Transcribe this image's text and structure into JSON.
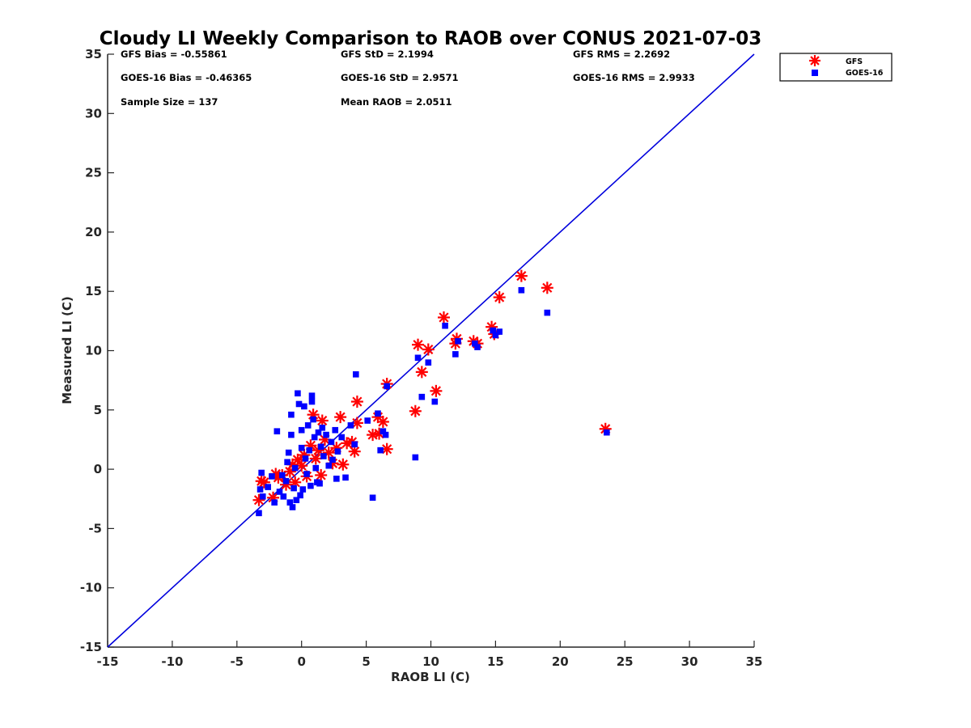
{
  "chart_data": {
    "type": "scatter",
    "title": "Cloudy LI Weekly Comparison to RAOB over CONUS 2021-07-03",
    "xlabel": "RAOB LI (C)",
    "ylabel": "Measured LI (C)",
    "xlim": [
      -15,
      35
    ],
    "ylim": [
      -15,
      35
    ],
    "xticks": [
      "-15",
      "-10",
      "-5",
      "0",
      "5",
      "10",
      "15",
      "20",
      "25",
      "30",
      "35"
    ],
    "yticks": [
      "-15",
      "-10",
      "-5",
      "0",
      "5",
      "10",
      "15",
      "20",
      "25",
      "30",
      "35"
    ],
    "grid": false,
    "legend_position": "outside top-right",
    "reference_line": {
      "name": "1:1 line",
      "points": [
        [
          -15,
          -15
        ],
        [
          35,
          35
        ]
      ],
      "color": "#0000dd"
    },
    "stats": [
      "GFS Bias = -0.55861",
      "GFS StD = 2.1994",
      "GFS RMS = 2.2692",
      "GOES-16 Bias = -0.46365",
      "GOES-16 StD = 2.9571",
      "GOES-16 RMS = 2.9933",
      "Sample Size = 137",
      "Mean RAOB = 2.0511"
    ],
    "series": [
      {
        "name": "GFS",
        "marker": "asterisk",
        "color": "#ff0000",
        "points": [
          [
            -3.3,
            -2.6
          ],
          [
            -3.1,
            -1.0
          ],
          [
            -2.9,
            -1.1
          ],
          [
            -2.2,
            -2.4
          ],
          [
            -2.0,
            -0.4
          ],
          [
            -1.8,
            -0.7
          ],
          [
            -1.5,
            -0.5
          ],
          [
            -1.2,
            -1.3
          ],
          [
            -0.9,
            -0.2
          ],
          [
            -0.7,
            0.4
          ],
          [
            -0.5,
            -1.1
          ],
          [
            -0.3,
            0.8
          ],
          [
            0.0,
            0.3
          ],
          [
            0.2,
            1.2
          ],
          [
            0.4,
            -0.6
          ],
          [
            0.7,
            2.0
          ],
          [
            0.9,
            4.6
          ],
          [
            1.1,
            0.9
          ],
          [
            1.3,
            1.6
          ],
          [
            1.5,
            -0.5
          ],
          [
            1.6,
            4.1
          ],
          [
            1.8,
            2.5
          ],
          [
            2.1,
            1.4
          ],
          [
            2.4,
            0.5
          ],
          [
            2.7,
            1.8
          ],
          [
            3.0,
            4.4
          ],
          [
            3.2,
            0.4
          ],
          [
            3.5,
            2.2
          ],
          [
            3.9,
            2.3
          ],
          [
            4.1,
            1.5
          ],
          [
            4.3,
            3.9
          ],
          [
            4.3,
            5.7
          ],
          [
            5.5,
            2.9
          ],
          [
            5.9,
            4.4
          ],
          [
            6.0,
            3.0
          ],
          [
            6.3,
            4.0
          ],
          [
            6.6,
            1.7
          ],
          [
            6.6,
            7.2
          ],
          [
            8.8,
            4.9
          ],
          [
            9.0,
            10.5
          ],
          [
            9.3,
            8.2
          ],
          [
            9.8,
            10.1
          ],
          [
            10.4,
            6.6
          ],
          [
            11.0,
            12.8
          ],
          [
            11.9,
            10.6
          ],
          [
            12.0,
            11.0
          ],
          [
            13.3,
            10.8
          ],
          [
            13.6,
            10.6
          ],
          [
            14.7,
            12.0
          ],
          [
            14.9,
            11.4
          ],
          [
            15.3,
            14.5
          ],
          [
            17.0,
            16.3
          ],
          [
            19.0,
            15.3
          ],
          [
            23.5,
            3.4
          ]
        ]
      },
      {
        "name": "GOES-16",
        "marker": "square",
        "color": "#0000ff",
        "points": [
          [
            -3.3,
            -3.7
          ],
          [
            -3.2,
            -1.7
          ],
          [
            -3.1,
            -0.3
          ],
          [
            -3.0,
            -2.3
          ],
          [
            -2.6,
            -1.5
          ],
          [
            -2.3,
            -0.6
          ],
          [
            -2.1,
            -2.8
          ],
          [
            -1.9,
            3.2
          ],
          [
            -1.7,
            -1.9
          ],
          [
            -1.5,
            -0.5
          ],
          [
            -1.4,
            -2.3
          ],
          [
            -1.2,
            -1.0
          ],
          [
            -1.1,
            0.6
          ],
          [
            -1.0,
            1.4
          ],
          [
            -0.9,
            -2.8
          ],
          [
            -0.8,
            2.9
          ],
          [
            -0.8,
            4.6
          ],
          [
            -0.7,
            -3.2
          ],
          [
            -0.6,
            -1.6
          ],
          [
            -0.5,
            0.1
          ],
          [
            -0.4,
            -2.6
          ],
          [
            -0.3,
            6.4
          ],
          [
            -0.2,
            5.5
          ],
          [
            -0.1,
            -2.2
          ],
          [
            0.0,
            3.3
          ],
          [
            0.0,
            1.8
          ],
          [
            0.1,
            -1.7
          ],
          [
            0.2,
            5.3
          ],
          [
            0.3,
            0.9
          ],
          [
            0.4,
            -0.4
          ],
          [
            0.5,
            3.7
          ],
          [
            0.6,
            1.6
          ],
          [
            0.7,
            -1.4
          ],
          [
            0.8,
            5.7
          ],
          [
            0.8,
            6.2
          ],
          [
            0.9,
            4.2
          ],
          [
            1.0,
            2.7
          ],
          [
            1.1,
            0.1
          ],
          [
            1.2,
            -1.1
          ],
          [
            1.3,
            3.1
          ],
          [
            1.4,
            -1.2
          ],
          [
            1.5,
            1.9
          ],
          [
            1.6,
            3.5
          ],
          [
            1.7,
            1.1
          ],
          [
            1.9,
            2.9
          ],
          [
            2.1,
            0.3
          ],
          [
            2.3,
            2.3
          ],
          [
            2.4,
            0.8
          ],
          [
            2.6,
            3.3
          ],
          [
            2.7,
            -0.8
          ],
          [
            2.8,
            1.5
          ],
          [
            3.1,
            2.7
          ],
          [
            3.4,
            -0.7
          ],
          [
            3.8,
            3.7
          ],
          [
            4.1,
            2.1
          ],
          [
            4.2,
            8.0
          ],
          [
            5.1,
            4.1
          ],
          [
            5.5,
            -2.4
          ],
          [
            5.9,
            4.7
          ],
          [
            6.1,
            1.6
          ],
          [
            6.3,
            3.2
          ],
          [
            6.5,
            2.9
          ],
          [
            6.6,
            7.0
          ],
          [
            8.8,
            1.0
          ],
          [
            9.0,
            9.4
          ],
          [
            9.3,
            6.1
          ],
          [
            9.8,
            9.0
          ],
          [
            10.3,
            5.7
          ],
          [
            11.1,
            12.1
          ],
          [
            11.9,
            9.7
          ],
          [
            12.1,
            10.8
          ],
          [
            13.4,
            10.6
          ],
          [
            13.6,
            10.3
          ],
          [
            14.8,
            11.7
          ],
          [
            15.0,
            11.3
          ],
          [
            15.3,
            11.6
          ],
          [
            17.0,
            15.1
          ],
          [
            19.0,
            13.2
          ],
          [
            23.6,
            3.1
          ]
        ]
      }
    ]
  }
}
